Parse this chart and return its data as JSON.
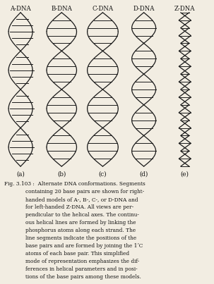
{
  "title_labels": [
    "A-DNA",
    "B-DNA",
    "C-DNA",
    "D-DNA",
    "Z-DNA"
  ],
  "sub_labels": [
    "(a)",
    "(b)",
    "(c)",
    "(d)",
    "(e)"
  ],
  "caption_line1": "Fig. 3.103 :  Alternate DNA conformations. Segments",
  "caption_lines": [
    "containing 20 base pairs are shown for right-",
    "handed models of A-, B-, C-, or D-DNA and",
    "for left-handed Z-DNA. All views are per-",
    "pendicular to the helical axes. The continu-",
    "ous helical lines are formed by linking the",
    "phosphorus atoms along each strand. The",
    "line segments indicate the positions of the",
    "base pairs and are formed by joining the 1ʼC",
    "atoms of each base pair. This simplified",
    "mode of representation emphasizes the dif-",
    "ferences in helical parameters and in posi-",
    "tions of the base pairs among these models."
  ],
  "bg_color": "#f2ede2",
  "text_color": "#111111",
  "helix_color": "#1a1a1a",
  "fig_width": 3.03,
  "fig_height": 4.03,
  "dpi": 100,
  "dna_configs": [
    {
      "name": "A",
      "n_diamonds": 4,
      "amp": 0.28,
      "bp_tilt": 25,
      "bp_density": 6,
      "style": "A"
    },
    {
      "name": "B",
      "n_diamonds": 4,
      "amp": 0.35,
      "bp_tilt": 0,
      "bp_density": 5,
      "style": "B"
    },
    {
      "name": "C",
      "n_diamonds": 4,
      "amp": 0.36,
      "bp_tilt": 5,
      "bp_density": 5,
      "style": "C"
    },
    {
      "name": "D",
      "n_diamonds": 5,
      "amp": 0.28,
      "bp_tilt": 0,
      "bp_density": 4,
      "style": "D"
    },
    {
      "name": "Z",
      "n_diamonds": 0,
      "amp": 0.2,
      "bp_tilt": 0,
      "bp_density": 5,
      "style": "Z"
    }
  ]
}
